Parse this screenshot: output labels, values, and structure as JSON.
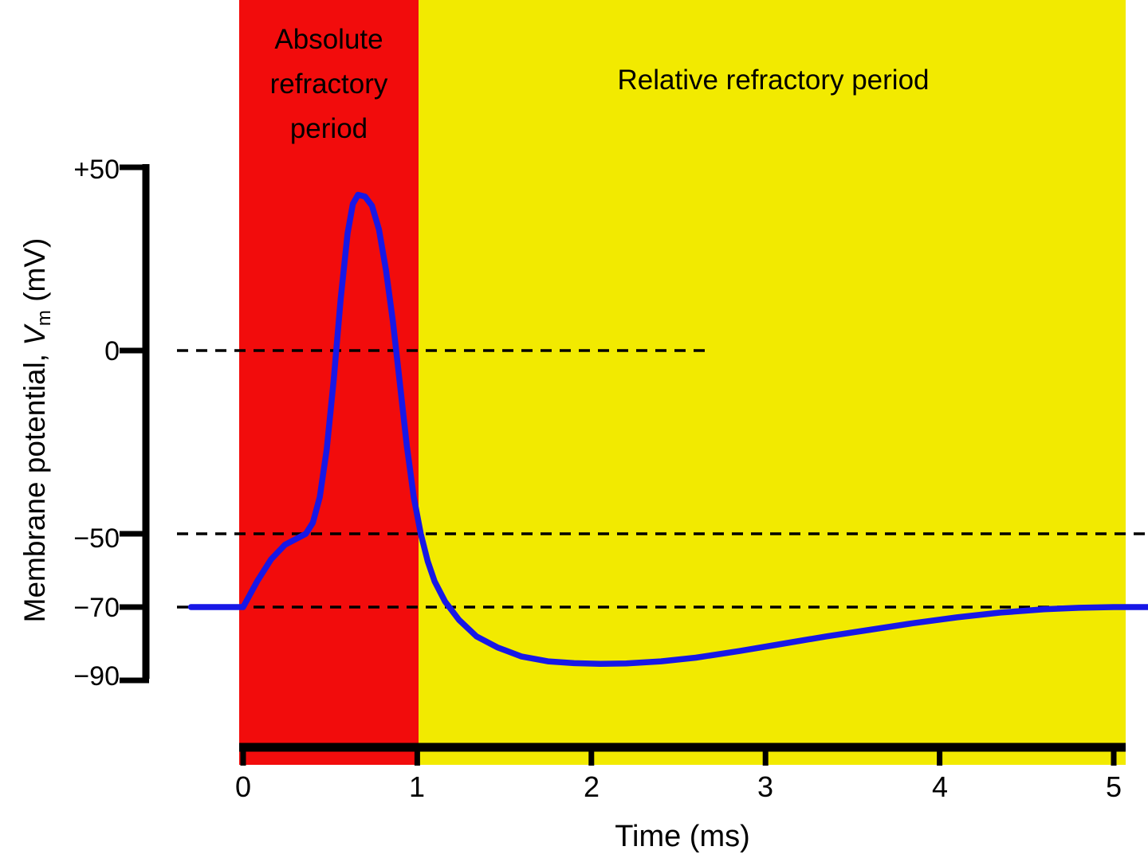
{
  "chart_data": {
    "type": "line",
    "title": "",
    "xlabel": "Time (ms)",
    "ylabel": "Membrane potential, Vm (mV)",
    "ylabel_parts": {
      "prefix": "Membrane potential, ",
      "variable": "V",
      "subscript": "m",
      "suffix": " (mV)"
    },
    "xlim": [
      0,
      5
    ],
    "ylim": [
      -90,
      50
    ],
    "grid": false,
    "legend": "none",
    "x_ticks": [
      "0",
      "1",
      "2",
      "3",
      "4",
      "5"
    ],
    "y_ticks": [
      {
        "label": "+50",
        "value": 50
      },
      {
        "label": "0",
        "value": 0
      },
      {
        "label": "−50",
        "value": -50
      },
      {
        "label": "−70",
        "value": -70
      },
      {
        "label": "−90",
        "value": -90
      }
    ],
    "regions": [
      {
        "name": "Absolute refractory period",
        "x0": 0,
        "x1": 1,
        "color": "#f20c0c"
      },
      {
        "name": "Relative refractory period",
        "x0": 1,
        "x1": 5,
        "color": "#f2ea00"
      }
    ],
    "reference_lines_mv": [
      0,
      -50,
      -70
    ],
    "series": [
      {
        "name": "membrane potential",
        "color": "#1717e6",
        "x": [
          -0.3,
          -0.1,
          0.0,
          0.08,
          0.16,
          0.24,
          0.3,
          0.36,
          0.4,
          0.44,
          0.48,
          0.52,
          0.56,
          0.6,
          0.63,
          0.66,
          0.7,
          0.74,
          0.78,
          0.82,
          0.86,
          0.9,
          0.94,
          0.98,
          1.02,
          1.06,
          1.1,
          1.16,
          1.24,
          1.34,
          1.46,
          1.6,
          1.75,
          1.9,
          2.05,
          2.2,
          2.4,
          2.6,
          2.85,
          3.1,
          3.35,
          3.6,
          3.85,
          4.1,
          4.35,
          4.6,
          4.8,
          5.0,
          5.2
        ],
        "y": [
          -70,
          -70,
          -70,
          -63,
          -57,
          -53,
          -51.5,
          -50,
          -47,
          -40,
          -27,
          -8,
          14,
          32,
          40,
          42.5,
          42,
          39.5,
          33,
          22,
          8,
          -9,
          -26,
          -40,
          -50,
          -57.5,
          -63,
          -68.5,
          -73.5,
          -78,
          -81,
          -83.5,
          -84.8,
          -85.3,
          -85.5,
          -85.4,
          -84.8,
          -83.8,
          -82,
          -80,
          -78,
          -76.2,
          -74.4,
          -72.8,
          -71.5,
          -70.6,
          -70.2,
          -70,
          -70
        ]
      }
    ]
  }
}
